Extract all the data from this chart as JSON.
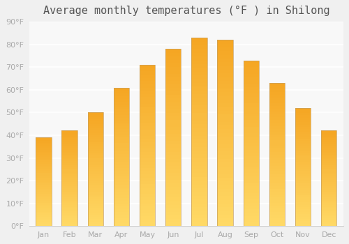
{
  "title": "Average monthly temperatures (°F ) in Shilong",
  "months": [
    "Jan",
    "Feb",
    "Mar",
    "Apr",
    "May",
    "Jun",
    "Jul",
    "Aug",
    "Sep",
    "Oct",
    "Nov",
    "Dec"
  ],
  "values": [
    39,
    42,
    50,
    61,
    71,
    78,
    83,
    82,
    73,
    63,
    52,
    42
  ],
  "bar_color_top": "#F5A623",
  "bar_color_bottom": "#FFD966",
  "bar_edge_color": "#C8A060",
  "ylim": [
    0,
    90
  ],
  "yticks": [
    0,
    10,
    20,
    30,
    40,
    50,
    60,
    70,
    80,
    90
  ],
  "background_color": "#f0f0f0",
  "plot_bg_color": "#f8f8f8",
  "grid_color": "#ffffff",
  "title_fontsize": 11,
  "tick_fontsize": 8,
  "tick_color": "#aaaaaa",
  "figsize": [
    5.0,
    3.5
  ],
  "dpi": 100
}
